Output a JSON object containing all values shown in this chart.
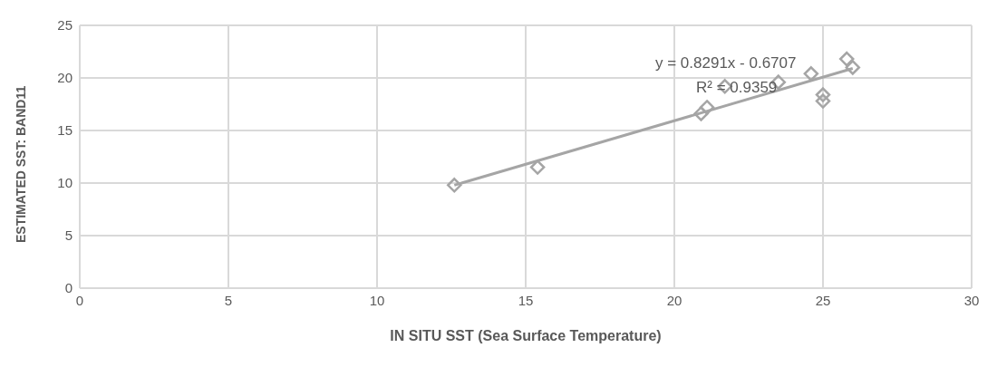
{
  "chart_data": {
    "type": "scatter",
    "xlabel": "IN SITU SST (Sea Surface Temperature)",
    "ylabel": "ESTIMATED SST:  BAND11",
    "xlim": [
      0,
      30
    ],
    "xticks": [
      0,
      5,
      10,
      15,
      20,
      25,
      30
    ],
    "ylim": [
      0,
      25
    ],
    "yticks": [
      0,
      5,
      10,
      15,
      20,
      25
    ],
    "grid": true,
    "marker": "diamond",
    "series": [
      {
        "color": "#a5a5a5",
        "x": [
          12.6,
          15.4,
          20.9,
          21.1,
          21.7,
          23.5,
          24.6,
          25.0,
          25.0,
          25.8,
          26.0
        ],
        "values": [
          9.8,
          11.5,
          16.6,
          17.2,
          19.2,
          19.6,
          20.4,
          18.4,
          17.8,
          21.8,
          21.0
        ]
      },
      {
        "type": "line",
        "color": "#a5a5a5",
        "marker": "none",
        "x": [
          12.6,
          26.0
        ],
        "values": [
          9.8,
          20.9
        ]
      }
    ],
    "annotations": [
      "y = 0.8291x - 0.6707",
      "R² = 0.9359"
    ]
  }
}
